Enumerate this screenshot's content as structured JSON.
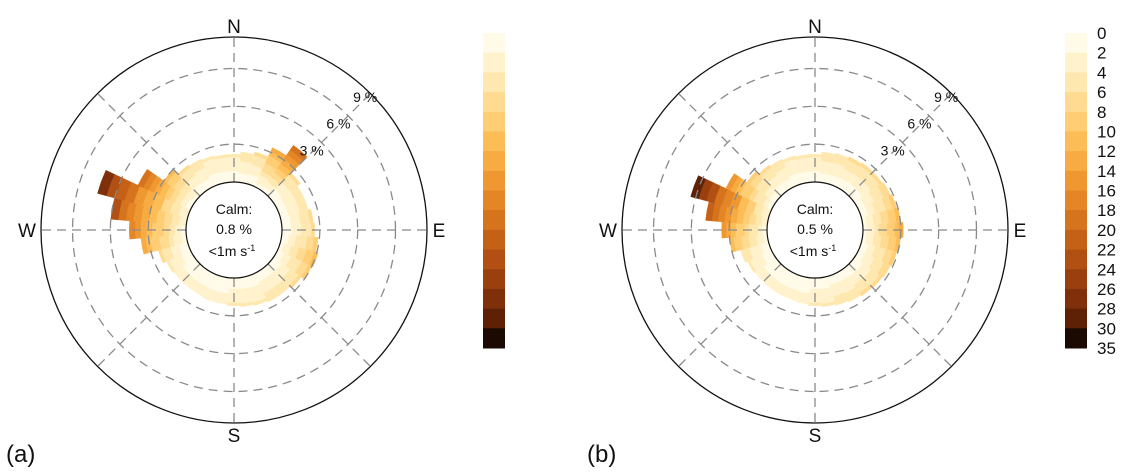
{
  "chart_data": [
    {
      "type": "wind-rose",
      "panel_label": "(a)",
      "directions": [
        "N",
        "E",
        "S",
        "W"
      ],
      "ring_labels": [
        "3 %",
        "6 %",
        "9 %"
      ],
      "ring_values": [
        3,
        6,
        9
      ],
      "rmax": 11.5,
      "calm": {
        "line1": "Calm:",
        "line2": "0.8 %",
        "line3": "<1m s",
        "sup": "-1",
        "percent": 0.8
      },
      "wedge_step_deg": 10,
      "wedges": [
        {
          "dir": 0,
          "freq": 2.2,
          "max_speed": 4
        },
        {
          "dir": 10,
          "freq": 2.4,
          "max_speed": 5
        },
        {
          "dir": 20,
          "freq": 2.6,
          "max_speed": 6
        },
        {
          "dir": 30,
          "freq": 3.4,
          "max_speed": 12
        },
        {
          "dir": 40,
          "freq": 4.4,
          "max_speed": 18
        },
        {
          "dir": 50,
          "freq": 2.6,
          "max_speed": 6
        },
        {
          "dir": 60,
          "freq": 2.3,
          "max_speed": 5
        },
        {
          "dir": 70,
          "freq": 2.3,
          "max_speed": 5
        },
        {
          "dir": 80,
          "freq": 2.5,
          "max_speed": 6
        },
        {
          "dir": 90,
          "freq": 2.6,
          "max_speed": 6
        },
        {
          "dir": 100,
          "freq": 2.9,
          "max_speed": 8
        },
        {
          "dir": 110,
          "freq": 3.1,
          "max_speed": 10
        },
        {
          "dir": 120,
          "freq": 3.0,
          "max_speed": 8
        },
        {
          "dir": 130,
          "freq": 2.7,
          "max_speed": 6
        },
        {
          "dir": 140,
          "freq": 2.5,
          "max_speed": 5
        },
        {
          "dir": 150,
          "freq": 2.5,
          "max_speed": 5
        },
        {
          "dir": 160,
          "freq": 2.4,
          "max_speed": 4
        },
        {
          "dir": 170,
          "freq": 2.3,
          "max_speed": 4
        },
        {
          "dir": 180,
          "freq": 2.2,
          "max_speed": 4
        },
        {
          "dir": 190,
          "freq": 2.1,
          "max_speed": 3
        },
        {
          "dir": 200,
          "freq": 2.1,
          "max_speed": 3
        },
        {
          "dir": 210,
          "freq": 2.0,
          "max_speed": 3
        },
        {
          "dir": 220,
          "freq": 2.0,
          "max_speed": 3
        },
        {
          "dir": 230,
          "freq": 2.0,
          "max_speed": 3
        },
        {
          "dir": 240,
          "freq": 2.1,
          "max_speed": 4
        },
        {
          "dir": 250,
          "freq": 2.4,
          "max_speed": 6
        },
        {
          "dir": 260,
          "freq": 3.6,
          "max_speed": 12
        },
        {
          "dir": 270,
          "freq": 4.5,
          "max_speed": 16
        },
        {
          "dir": 280,
          "freq": 6.0,
          "max_speed": 22
        },
        {
          "dir": 290,
          "freq": 7.4,
          "max_speed": 26
        },
        {
          "dir": 300,
          "freq": 4.6,
          "max_speed": 18
        },
        {
          "dir": 310,
          "freq": 3.0,
          "max_speed": 10
        },
        {
          "dir": 320,
          "freq": 2.5,
          "max_speed": 6
        },
        {
          "dir": 330,
          "freq": 2.4,
          "max_speed": 5
        },
        {
          "dir": 340,
          "freq": 2.3,
          "max_speed": 4
        },
        {
          "dir": 350,
          "freq": 2.2,
          "max_speed": 4
        }
      ]
    },
    {
      "type": "wind-rose",
      "panel_label": "(b)",
      "directions": [
        "N",
        "E",
        "S",
        "W"
      ],
      "ring_labels": [
        "3 %",
        "6 %",
        "9 %"
      ],
      "ring_values": [
        3,
        6,
        9
      ],
      "rmax": 11.5,
      "calm": {
        "line1": "Calm:",
        "line2": "0.5 %",
        "line3": "<1m s",
        "sup": "-1",
        "percent": 0.5
      },
      "wedge_step_deg": 10,
      "wedges": [
        {
          "dir": 0,
          "freq": 2.2,
          "max_speed": 4
        },
        {
          "dir": 10,
          "freq": 2.4,
          "max_speed": 5
        },
        {
          "dir": 20,
          "freq": 2.5,
          "max_speed": 5
        },
        {
          "dir": 30,
          "freq": 2.6,
          "max_speed": 6
        },
        {
          "dir": 40,
          "freq": 2.7,
          "max_speed": 6
        },
        {
          "dir": 50,
          "freq": 2.7,
          "max_speed": 6
        },
        {
          "dir": 60,
          "freq": 2.8,
          "max_speed": 7
        },
        {
          "dir": 70,
          "freq": 2.9,
          "max_speed": 8
        },
        {
          "dir": 80,
          "freq": 3.0,
          "max_speed": 10
        },
        {
          "dir": 90,
          "freq": 3.2,
          "max_speed": 12
        },
        {
          "dir": 100,
          "freq": 3.0,
          "max_speed": 10
        },
        {
          "dir": 110,
          "freq": 2.9,
          "max_speed": 8
        },
        {
          "dir": 120,
          "freq": 2.8,
          "max_speed": 7
        },
        {
          "dir": 130,
          "freq": 2.7,
          "max_speed": 6
        },
        {
          "dir": 140,
          "freq": 2.6,
          "max_speed": 6
        },
        {
          "dir": 150,
          "freq": 2.5,
          "max_speed": 5
        },
        {
          "dir": 160,
          "freq": 2.4,
          "max_speed": 5
        },
        {
          "dir": 170,
          "freq": 2.3,
          "max_speed": 4
        },
        {
          "dir": 180,
          "freq": 2.2,
          "max_speed": 4
        },
        {
          "dir": 190,
          "freq": 2.1,
          "max_speed": 3
        },
        {
          "dir": 200,
          "freq": 2.0,
          "max_speed": 3
        },
        {
          "dir": 210,
          "freq": 2.0,
          "max_speed": 3
        },
        {
          "dir": 220,
          "freq": 2.0,
          "max_speed": 3
        },
        {
          "dir": 230,
          "freq": 2.0,
          "max_speed": 3
        },
        {
          "dir": 240,
          "freq": 2.1,
          "max_speed": 4
        },
        {
          "dir": 250,
          "freq": 2.3,
          "max_speed": 5
        },
        {
          "dir": 260,
          "freq": 3.0,
          "max_speed": 10
        },
        {
          "dir": 270,
          "freq": 3.6,
          "max_speed": 14
        },
        {
          "dir": 280,
          "freq": 4.9,
          "max_speed": 20
        },
        {
          "dir": 290,
          "freq": 6.4,
          "max_speed": 28
        },
        {
          "dir": 300,
          "freq": 4.0,
          "max_speed": 14
        },
        {
          "dir": 310,
          "freq": 2.8,
          "max_speed": 8
        },
        {
          "dir": 320,
          "freq": 2.5,
          "max_speed": 6
        },
        {
          "dir": 330,
          "freq": 2.4,
          "max_speed": 5
        },
        {
          "dir": 340,
          "freq": 2.3,
          "max_speed": 4
        },
        {
          "dir": 350,
          "freq": 2.2,
          "max_speed": 4
        }
      ]
    }
  ],
  "colorbar": {
    "ticks": [
      "0",
      "2",
      "4",
      "6",
      "8",
      "10",
      "12",
      "14",
      "16",
      "18",
      "20",
      "22",
      "24",
      "26",
      "28",
      "30",
      "35"
    ],
    "bin_edges": [
      0,
      2,
      4,
      6,
      8,
      10,
      12,
      14,
      16,
      18,
      20,
      22,
      24,
      26,
      28,
      30,
      35
    ],
    "colors": [
      "#fffbe8",
      "#fff2cc",
      "#ffe8b0",
      "#ffdb92",
      "#ffcd73",
      "#fcbd57",
      "#f7ab42",
      "#ef9832",
      "#e48526",
      "#d6731d",
      "#c56116",
      "#b15012",
      "#9a400e",
      "#7f300a",
      "#5f2106",
      "#1a0a02"
    ]
  }
}
